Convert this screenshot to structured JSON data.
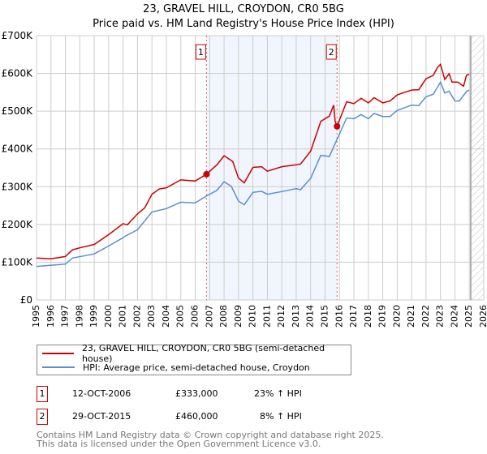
{
  "title": "23, GRAVEL HILL, CROYDON, CR0 5BG",
  "subtitle": "Price paid vs. HM Land Registry's House Price Index (HPI)",
  "chart_data": {
    "type": "line",
    "title": "23, GRAVEL HILL, CROYDON, CR0 5BG",
    "subtitle": "Price paid vs. HM Land Registry's House Price Index (HPI)",
    "xlim": [
      1995,
      2026
    ],
    "ylim": [
      0,
      700000
    ],
    "yticks": [
      0,
      100000,
      200000,
      300000,
      400000,
      500000,
      600000,
      700000
    ],
    "ytick_labels": [
      "£0",
      "£100K",
      "£200K",
      "£300K",
      "£400K",
      "£500K",
      "£600K",
      "£700K"
    ],
    "xticks": [
      1995,
      1996,
      1997,
      1998,
      1999,
      2000,
      2001,
      2002,
      2003,
      2004,
      2005,
      2006,
      2007,
      2008,
      2009,
      2010,
      2011,
      2012,
      2013,
      2014,
      2015,
      2016,
      2017,
      2018,
      2019,
      2020,
      2021,
      2022,
      2023,
      2024,
      2025,
      2026
    ],
    "grid": true,
    "shaded_range": [
      2006.78,
      2015.83
    ],
    "hatched_from": 2025.1,
    "series": [
      {
        "name": "23, GRAVEL HILL, CROYDON, CR0 5BG (semi-detached house)",
        "color": "#cc0000",
        "x": [
          1995,
          1996,
          1997,
          1997.5,
          1998,
          1999,
          2000,
          2001,
          2001.3,
          2002,
          2002.5,
          2003,
          2003.5,
          2004,
          2005,
          2006,
          2006.78,
          2007.5,
          2008,
          2008.6,
          2009,
          2009.4,
          2010,
          2010.6,
          2011,
          2012,
          2013,
          2013.3,
          2014,
          2014.7,
          2015.3,
          2015.6,
          2015.7,
          2015.83,
          2016.5,
          2017,
          2017.5,
          2018,
          2018.4,
          2019,
          2019.5,
          2020,
          2021,
          2021.5,
          2022,
          2022.5,
          2022.8,
          2023,
          2023.3,
          2023.6,
          2023.8,
          2024.2,
          2024.6,
          2024.8,
          2025
        ],
        "y": [
          111000,
          109000,
          115000,
          133000,
          138000,
          147000,
          173000,
          202000,
          199000,
          228000,
          244000,
          280000,
          294000,
          297000,
          318000,
          315000,
          333000,
          358000,
          382000,
          367000,
          323000,
          310000,
          351000,
          353000,
          341000,
          353000,
          358000,
          360000,
          394000,
          473000,
          487000,
          516000,
          473000,
          460000,
          525000,
          520000,
          534000,
          522000,
          536000,
          522000,
          527000,
          543000,
          556000,
          557000,
          586000,
          595000,
          616000,
          624000,
          584000,
          599000,
          577000,
          577000,
          566000,
          595000,
          598000
        ]
      },
      {
        "name": "HPI: Average price, semi-detached house, Croydon",
        "color": "#5b8fd0",
        "x": [
          1995,
          1997,
          1997.5,
          1999,
          2000,
          2001,
          2001.2,
          2002,
          2003,
          2004,
          2005,
          2006,
          2006.8,
          2007.5,
          2008,
          2008.5,
          2009,
          2009.4,
          2010,
          2010.6,
          2011,
          2012,
          2013,
          2013.3,
          2014,
          2014.7,
          2015.3,
          2015.8,
          2016.5,
          2017,
          2017.5,
          2018,
          2018.4,
          2019,
          2019.5,
          2020,
          2021,
          2021.5,
          2022,
          2022.5,
          2023,
          2023.3,
          2023.6,
          2024,
          2024.3,
          2024.8,
          2025
        ],
        "y": [
          89000,
          95000,
          111000,
          122000,
          143000,
          165000,
          170000,
          186000,
          233000,
          242000,
          259000,
          257000,
          276000,
          290000,
          313000,
          301000,
          262000,
          252000,
          285000,
          288000,
          280000,
          287000,
          295000,
          292000,
          322000,
          383000,
          380000,
          423000,
          482000,
          480000,
          491000,
          480000,
          494000,
          486000,
          486000,
          502000,
          516000,
          515000,
          538000,
          545000,
          577000,
          548000,
          553000,
          527000,
          527000,
          552000,
          556000
        ]
      }
    ],
    "sales": [
      {
        "label": "1",
        "x": 2006.78,
        "y": 333000
      },
      {
        "label": "2",
        "x": 2015.83,
        "y": 460000
      }
    ]
  },
  "legend": {
    "red_label": "23, GRAVEL HILL, CROYDON, CR0 5BG (semi-detached house)",
    "blue_label": "HPI: Average price, semi-detached house, Croydon"
  },
  "sales_table": [
    {
      "num": "1",
      "date": "12-OCT-2006",
      "price": "£333,000",
      "hpi": "23% ↑ HPI"
    },
    {
      "num": "2",
      "date": "29-OCT-2015",
      "price": "£460,000",
      "hpi": "8% ↑ HPI"
    }
  ],
  "footer": {
    "line1": "Contains HM Land Registry data © Crown copyright and database right 2025.",
    "line2": "This data is licensed under the Open Government Licence v3.0."
  }
}
